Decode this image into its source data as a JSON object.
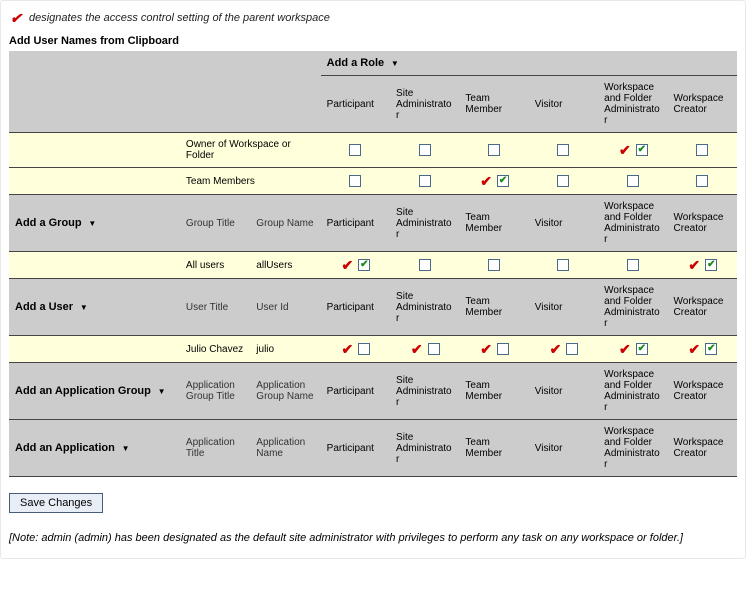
{
  "legend": "designates the access control setting of the parent workspace",
  "section_title": "Add User Names from Clipboard",
  "add_role_label": "Add a Role",
  "roles": [
    "Participant",
    "Site Administrator",
    "Team Member",
    "Visitor",
    "Workspace and Folder Administrator",
    "Workspace Creator"
  ],
  "band1": {
    "rows": [
      {
        "label": "Owner of Workspace or Folder",
        "cells": [
          {
            "parent": false,
            "checked": false
          },
          {
            "parent": false,
            "checked": false
          },
          {
            "parent": false,
            "checked": false
          },
          {
            "parent": false,
            "checked": false
          },
          {
            "parent": true,
            "checked": true
          },
          {
            "parent": false,
            "checked": false
          }
        ]
      },
      {
        "label": "Team Members",
        "cells": [
          {
            "parent": false,
            "checked": false
          },
          {
            "parent": false,
            "checked": false
          },
          {
            "parent": true,
            "checked": true
          },
          {
            "parent": false,
            "checked": false
          },
          {
            "parent": false,
            "checked": false
          },
          {
            "parent": false,
            "checked": false
          }
        ]
      }
    ]
  },
  "group_section": {
    "action": "Add a Group",
    "h1": "Group Title",
    "h2": "Group Name",
    "row": {
      "c1": "All users",
      "c2": "allUsers",
      "cells": [
        {
          "parent": true,
          "checked": true
        },
        {
          "parent": false,
          "checked": false
        },
        {
          "parent": false,
          "checked": false
        },
        {
          "parent": false,
          "checked": false
        },
        {
          "parent": false,
          "checked": false
        },
        {
          "parent": true,
          "checked": true
        }
      ]
    }
  },
  "user_section": {
    "action": "Add a User",
    "h1": "User Title",
    "h2": "User Id",
    "row": {
      "c1": "Julio Chavez",
      "c2": "julio",
      "cells": [
        {
          "parent": true,
          "checked": false
        },
        {
          "parent": true,
          "checked": false
        },
        {
          "parent": true,
          "checked": false
        },
        {
          "parent": true,
          "checked": false
        },
        {
          "parent": true,
          "checked": true
        },
        {
          "parent": true,
          "checked": true
        }
      ]
    }
  },
  "appgroup_section": {
    "action": "Add an Application Group",
    "h1": "Application Group Title",
    "h2": "Application Group Name"
  },
  "app_section": {
    "action": "Add an Application",
    "h1": "Application Title",
    "h2": "Application Name"
  },
  "save_button": "Save Changes",
  "note": "[Note: admin (admin) has been designated as the default site administrator with privileges to perform any task on any workspace or folder.]"
}
